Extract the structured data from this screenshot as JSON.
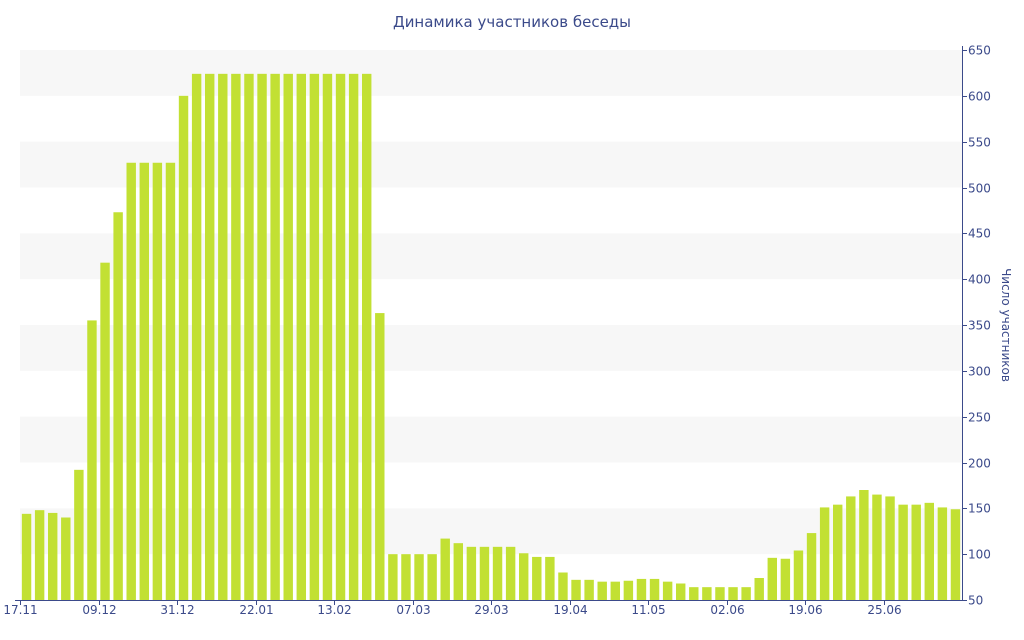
{
  "chart_data": {
    "type": "bar",
    "title": "Динамика участников беседы",
    "xlabel": "",
    "ylabel": "Число участников",
    "ylim": [
      50,
      650
    ],
    "y_ticks": [
      50,
      100,
      150,
      200,
      250,
      300,
      350,
      400,
      450,
      500,
      550,
      600,
      650
    ],
    "y_axis_side": "right",
    "grid": "alternating horizontal bands",
    "bar_color": "#c2e033",
    "x_tick_labels": [
      "17.11",
      "09.12",
      "31.12",
      "22.01",
      "13.02",
      "07.03",
      "29.03",
      "19.04",
      "11.05",
      "02.06",
      "19.06",
      "25.06"
    ],
    "x_tick_bar_index": [
      0,
      6,
      12,
      18,
      24,
      30,
      36,
      42,
      48,
      54,
      60,
      66
    ],
    "values": [
      144,
      148,
      145,
      140,
      192,
      355,
      418,
      473,
      527,
      527,
      527,
      527,
      600,
      624,
      624,
      624,
      624,
      624,
      624,
      624,
      624,
      624,
      624,
      624,
      624,
      624,
      624,
      363,
      100,
      100,
      100,
      100,
      117,
      112,
      108,
      108,
      108,
      108,
      101,
      97,
      97,
      80,
      72,
      72,
      70,
      70,
      71,
      73,
      73,
      70,
      68,
      64,
      64,
      64,
      64,
      64,
      74,
      96,
      95,
      104,
      123,
      151,
      154,
      163,
      170,
      165,
      163,
      154,
      154,
      156,
      151,
      149
    ]
  }
}
